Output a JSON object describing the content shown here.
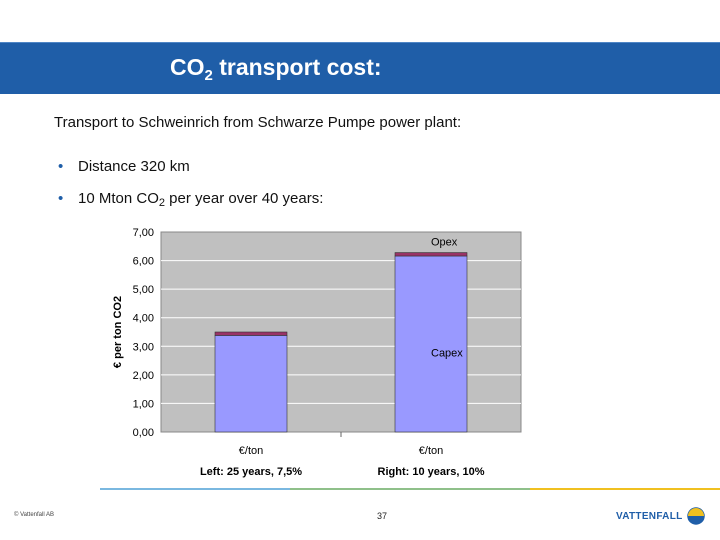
{
  "header": {
    "title_prefix": "CO",
    "title_sub": "2",
    "title_suffix": " transport cost:"
  },
  "body": {
    "intro": "Transport to Schweinrich from Schwarze Pumpe power plant:",
    "bullets": [
      {
        "text": "Distance 320 km"
      },
      {
        "prefix": "10 Mton CO",
        "sub": "2",
        "suffix": " per year over 40 years:"
      }
    ],
    "bullet_char": "•"
  },
  "chart_data": {
    "type": "bar",
    "stacked": true,
    "categories": [
      "€/ton",
      "€/ton"
    ],
    "series": [
      {
        "name": "Capex",
        "values": [
          3.38,
          6.16
        ],
        "color": "#9999ff"
      },
      {
        "name": "Opex",
        "values": [
          0.12,
          0.12
        ],
        "color": "#993366"
      }
    ],
    "ylabel": "€ per ton CO2",
    "ylim": [
      0,
      7
    ],
    "yticks": [
      "0,00",
      "1,00",
      "2,00",
      "3,00",
      "4,00",
      "5,00",
      "6,00",
      "7,00"
    ],
    "grid": true,
    "plot_background": "#c0c0c0",
    "annotations": [
      "Opex",
      "Capex"
    ],
    "captions": [
      "Left: 25 years, 7,5%",
      "Right: 10 years, 10%"
    ]
  },
  "footer": {
    "copyright": "© Vattenfall AB",
    "page": "37",
    "logo": "VATTENFALL"
  },
  "colors": {
    "brand": "#1f5ea8",
    "line1": "#7ab8e0",
    "line2": "#8fc08a",
    "line3": "#f0c020"
  }
}
